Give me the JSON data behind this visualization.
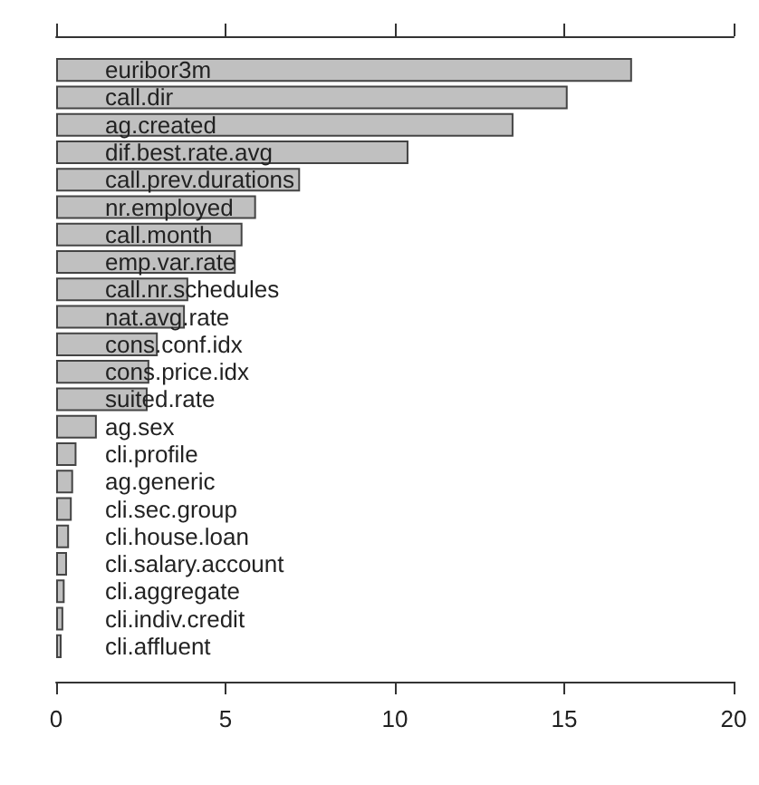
{
  "chart_data": {
    "type": "bar",
    "orientation": "horizontal",
    "categories": [
      "euribor3m",
      "call.dir",
      "ag.created",
      "dif.best.rate.avg",
      "call.prev.durations",
      "nr.employed",
      "call.month",
      "emp.var.rate",
      "call.nr.schedules",
      "nat.avg.rate",
      "cons.conf.idx",
      "cons.price.idx",
      "suited.rate",
      "ag.sex",
      "cli.profile",
      "ag.generic",
      "cli.sec.group",
      "cli.house.loan",
      "cli.salary.account",
      "cli.aggregate",
      "cli.indiv.credit",
      "cli.affluent"
    ],
    "values": [
      17.0,
      15.1,
      13.5,
      10.4,
      7.2,
      5.9,
      5.5,
      5.3,
      3.9,
      3.8,
      3.0,
      2.75,
      2.7,
      1.2,
      0.6,
      0.5,
      0.46,
      0.38,
      0.32,
      0.25,
      0.21,
      0.16
    ],
    "color": "#c0c0c0",
    "xlim": [
      0,
      20
    ],
    "xticks": [
      0,
      5,
      10,
      15,
      20
    ],
    "grid": false
  }
}
